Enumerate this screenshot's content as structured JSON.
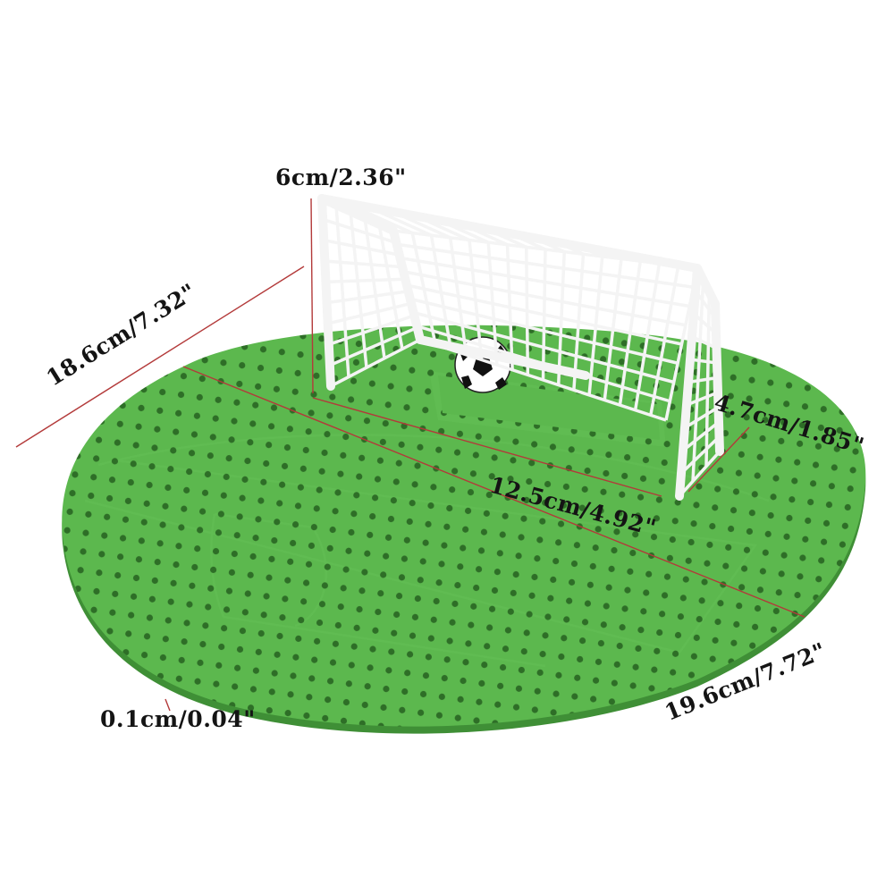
{
  "colors": {
    "mat": "#5cb84e",
    "mat_shadow": "#3f8f36",
    "mat_panel": "#64c056",
    "holes": "#2e6e27",
    "net": "#f4f4f4",
    "dimension_line": "#b33a3a",
    "label_text": "#141414"
  },
  "dimensions": {
    "goal_height": "6cm/2.36\"",
    "mat_width": "18.6cm/7.32\"",
    "goal_width": "12.5cm/4.92\"",
    "goal_depth": "4.7cm/1.85\"",
    "mat_length": "19.6cm/7.72\"",
    "mat_thickness": "0.1cm/0.04\""
  },
  "objects": {
    "mat": "green soccer-field urinal screen",
    "goal": "white football goal with net",
    "ball": "black-and-white soccer ball"
  }
}
